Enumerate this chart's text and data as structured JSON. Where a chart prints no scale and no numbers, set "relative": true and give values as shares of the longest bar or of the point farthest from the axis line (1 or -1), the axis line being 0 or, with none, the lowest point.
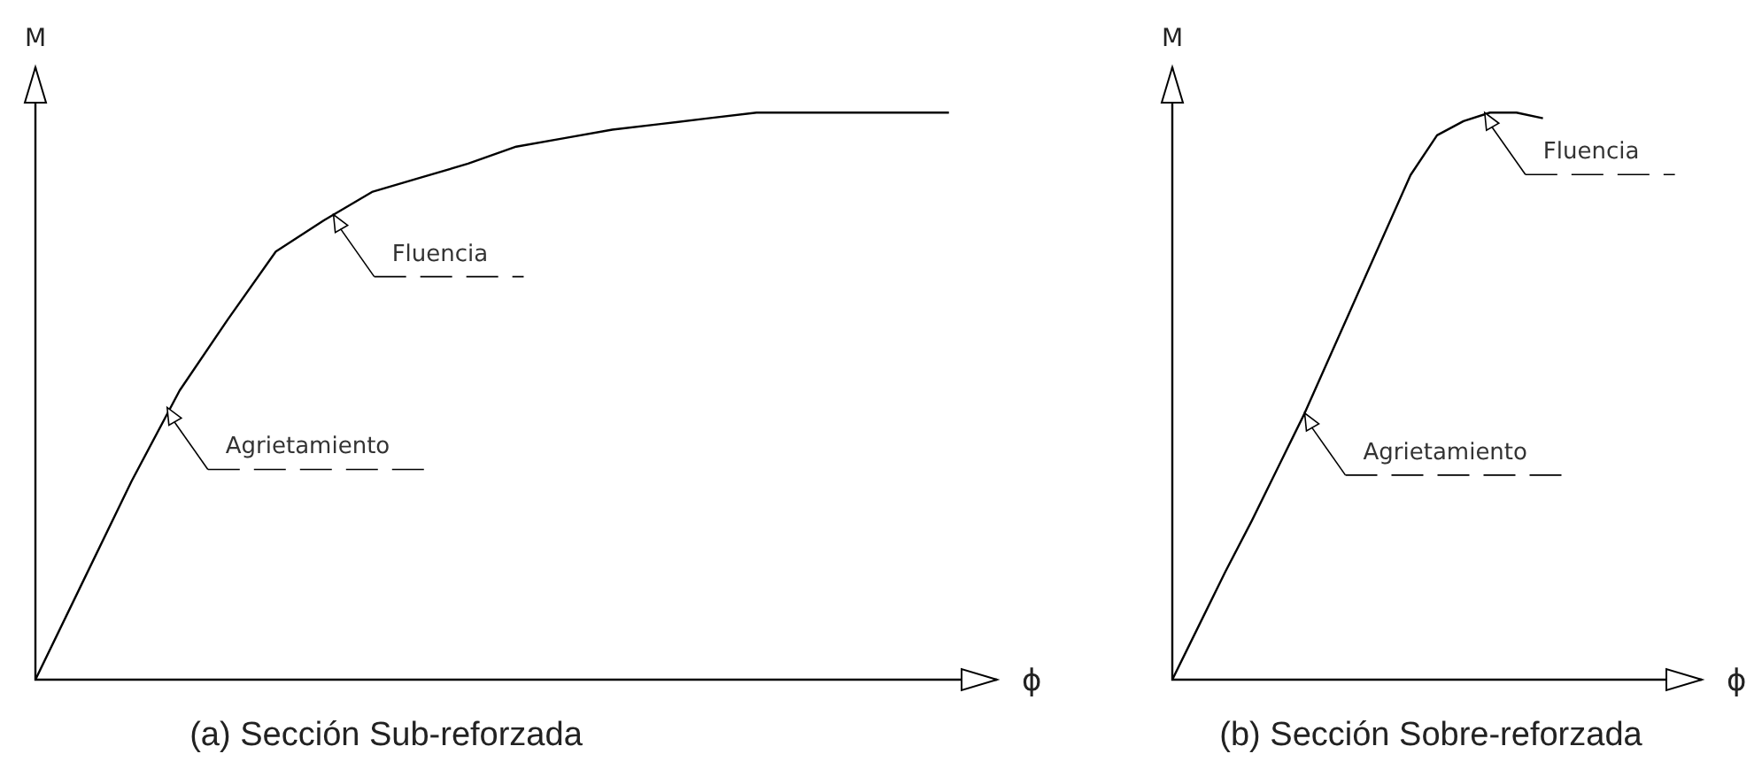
{
  "chart_data": [
    {
      "type": "line",
      "relative": true,
      "title": "(a) Sección Sub-reforzada",
      "xlabel": "ϕ",
      "ylabel": "M",
      "tick_labels": false,
      "categories": [
        null,
        null,
        null,
        null,
        null,
        null,
        null,
        null,
        null,
        null,
        null,
        null,
        null,
        null,
        null,
        null,
        null,
        null,
        null,
        null,
        null
      ],
      "series": [
        {
          "color": "#000000",
          "values": [
            0,
            0.175,
            0.35,
            0.51,
            0.635,
            0.755,
            0.81,
            0.86,
            0.885,
            0.91,
            0.94,
            0.955,
            0.97,
            0.98,
            0.99,
            1.0,
            1.0,
            1.0,
            1.0,
            1.0,
            null
          ]
        }
      ],
      "annotations": [
        "Agrietamiento",
        "Fluencia"
      ]
    },
    {
      "type": "line",
      "relative": true,
      "title": "(b) Sección Sobre-reforzada",
      "xlabel": "ϕ",
      "ylabel": "M",
      "tick_labels": false,
      "categories": [
        null,
        null,
        null,
        null,
        null,
        null,
        null,
        null,
        null,
        null,
        null,
        null,
        null,
        null,
        null,
        null,
        null,
        null,
        null,
        null,
        null
      ],
      "series": [
        {
          "color": "#000000",
          "values": [
            0,
            0.095,
            0.19,
            0.28,
            0.375,
            0.47,
            0.575,
            0.68,
            0.785,
            0.89,
            0.96,
            0.985,
            1.0,
            1.0,
            0.99,
            null,
            null,
            null,
            null,
            null,
            null
          ]
        }
      ],
      "annotations": [
        "Agrietamiento",
        "Fluencia"
      ]
    }
  ]
}
